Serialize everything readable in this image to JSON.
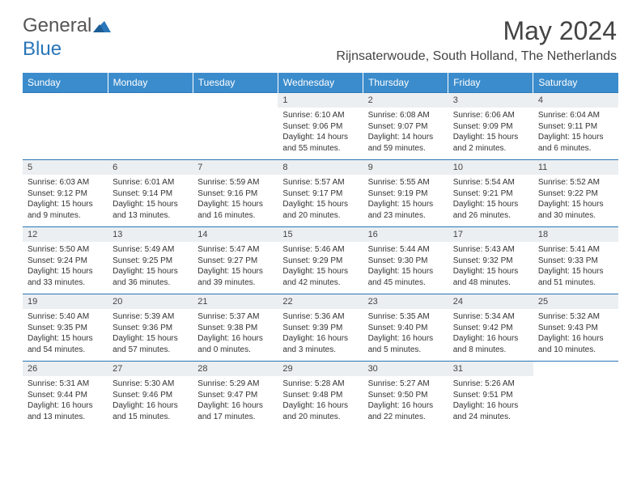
{
  "brand": {
    "part1": "General",
    "part2": "Blue"
  },
  "header": {
    "month_title": "May 2024",
    "location": "Rijnsaterwoude, South Holland, The Netherlands"
  },
  "colors": {
    "header_bg": "#3b8ccc",
    "accent": "#2a76b8",
    "daynum_bg": "#eceff1"
  },
  "weekdays": [
    "Sunday",
    "Monday",
    "Tuesday",
    "Wednesday",
    "Thursday",
    "Friday",
    "Saturday"
  ],
  "days": [
    {
      "n": "",
      "sr": "",
      "ss": "",
      "dl": ""
    },
    {
      "n": "",
      "sr": "",
      "ss": "",
      "dl": ""
    },
    {
      "n": "",
      "sr": "",
      "ss": "",
      "dl": ""
    },
    {
      "n": "1",
      "sr": "Sunrise: 6:10 AM",
      "ss": "Sunset: 9:06 PM",
      "dl": "Daylight: 14 hours and 55 minutes."
    },
    {
      "n": "2",
      "sr": "Sunrise: 6:08 AM",
      "ss": "Sunset: 9:07 PM",
      "dl": "Daylight: 14 hours and 59 minutes."
    },
    {
      "n": "3",
      "sr": "Sunrise: 6:06 AM",
      "ss": "Sunset: 9:09 PM",
      "dl": "Daylight: 15 hours and 2 minutes."
    },
    {
      "n": "4",
      "sr": "Sunrise: 6:04 AM",
      "ss": "Sunset: 9:11 PM",
      "dl": "Daylight: 15 hours and 6 minutes."
    },
    {
      "n": "5",
      "sr": "Sunrise: 6:03 AM",
      "ss": "Sunset: 9:12 PM",
      "dl": "Daylight: 15 hours and 9 minutes."
    },
    {
      "n": "6",
      "sr": "Sunrise: 6:01 AM",
      "ss": "Sunset: 9:14 PM",
      "dl": "Daylight: 15 hours and 13 minutes."
    },
    {
      "n": "7",
      "sr": "Sunrise: 5:59 AM",
      "ss": "Sunset: 9:16 PM",
      "dl": "Daylight: 15 hours and 16 minutes."
    },
    {
      "n": "8",
      "sr": "Sunrise: 5:57 AM",
      "ss": "Sunset: 9:17 PM",
      "dl": "Daylight: 15 hours and 20 minutes."
    },
    {
      "n": "9",
      "sr": "Sunrise: 5:55 AM",
      "ss": "Sunset: 9:19 PM",
      "dl": "Daylight: 15 hours and 23 minutes."
    },
    {
      "n": "10",
      "sr": "Sunrise: 5:54 AM",
      "ss": "Sunset: 9:21 PM",
      "dl": "Daylight: 15 hours and 26 minutes."
    },
    {
      "n": "11",
      "sr": "Sunrise: 5:52 AM",
      "ss": "Sunset: 9:22 PM",
      "dl": "Daylight: 15 hours and 30 minutes."
    },
    {
      "n": "12",
      "sr": "Sunrise: 5:50 AM",
      "ss": "Sunset: 9:24 PM",
      "dl": "Daylight: 15 hours and 33 minutes."
    },
    {
      "n": "13",
      "sr": "Sunrise: 5:49 AM",
      "ss": "Sunset: 9:25 PM",
      "dl": "Daylight: 15 hours and 36 minutes."
    },
    {
      "n": "14",
      "sr": "Sunrise: 5:47 AM",
      "ss": "Sunset: 9:27 PM",
      "dl": "Daylight: 15 hours and 39 minutes."
    },
    {
      "n": "15",
      "sr": "Sunrise: 5:46 AM",
      "ss": "Sunset: 9:29 PM",
      "dl": "Daylight: 15 hours and 42 minutes."
    },
    {
      "n": "16",
      "sr": "Sunrise: 5:44 AM",
      "ss": "Sunset: 9:30 PM",
      "dl": "Daylight: 15 hours and 45 minutes."
    },
    {
      "n": "17",
      "sr": "Sunrise: 5:43 AM",
      "ss": "Sunset: 9:32 PM",
      "dl": "Daylight: 15 hours and 48 minutes."
    },
    {
      "n": "18",
      "sr": "Sunrise: 5:41 AM",
      "ss": "Sunset: 9:33 PM",
      "dl": "Daylight: 15 hours and 51 minutes."
    },
    {
      "n": "19",
      "sr": "Sunrise: 5:40 AM",
      "ss": "Sunset: 9:35 PM",
      "dl": "Daylight: 15 hours and 54 minutes."
    },
    {
      "n": "20",
      "sr": "Sunrise: 5:39 AM",
      "ss": "Sunset: 9:36 PM",
      "dl": "Daylight: 15 hours and 57 minutes."
    },
    {
      "n": "21",
      "sr": "Sunrise: 5:37 AM",
      "ss": "Sunset: 9:38 PM",
      "dl": "Daylight: 16 hours and 0 minutes."
    },
    {
      "n": "22",
      "sr": "Sunrise: 5:36 AM",
      "ss": "Sunset: 9:39 PM",
      "dl": "Daylight: 16 hours and 3 minutes."
    },
    {
      "n": "23",
      "sr": "Sunrise: 5:35 AM",
      "ss": "Sunset: 9:40 PM",
      "dl": "Daylight: 16 hours and 5 minutes."
    },
    {
      "n": "24",
      "sr": "Sunrise: 5:34 AM",
      "ss": "Sunset: 9:42 PM",
      "dl": "Daylight: 16 hours and 8 minutes."
    },
    {
      "n": "25",
      "sr": "Sunrise: 5:32 AM",
      "ss": "Sunset: 9:43 PM",
      "dl": "Daylight: 16 hours and 10 minutes."
    },
    {
      "n": "26",
      "sr": "Sunrise: 5:31 AM",
      "ss": "Sunset: 9:44 PM",
      "dl": "Daylight: 16 hours and 13 minutes."
    },
    {
      "n": "27",
      "sr": "Sunrise: 5:30 AM",
      "ss": "Sunset: 9:46 PM",
      "dl": "Daylight: 16 hours and 15 minutes."
    },
    {
      "n": "28",
      "sr": "Sunrise: 5:29 AM",
      "ss": "Sunset: 9:47 PM",
      "dl": "Daylight: 16 hours and 17 minutes."
    },
    {
      "n": "29",
      "sr": "Sunrise: 5:28 AM",
      "ss": "Sunset: 9:48 PM",
      "dl": "Daylight: 16 hours and 20 minutes."
    },
    {
      "n": "30",
      "sr": "Sunrise: 5:27 AM",
      "ss": "Sunset: 9:50 PM",
      "dl": "Daylight: 16 hours and 22 minutes."
    },
    {
      "n": "31",
      "sr": "Sunrise: 5:26 AM",
      "ss": "Sunset: 9:51 PM",
      "dl": "Daylight: 16 hours and 24 minutes."
    },
    {
      "n": "",
      "sr": "",
      "ss": "",
      "dl": ""
    }
  ]
}
